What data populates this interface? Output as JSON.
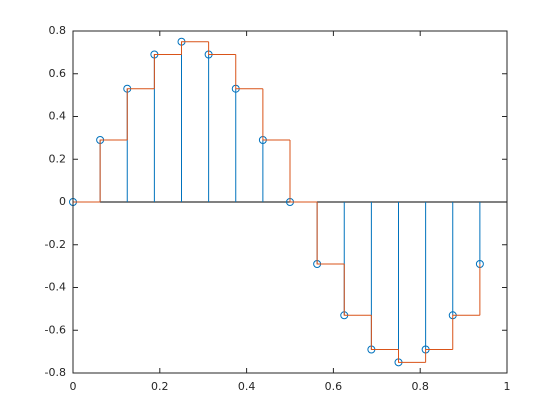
{
  "chart_data": {
    "type": "stem",
    "x": [
      0,
      0.0625,
      0.125,
      0.1875,
      0.25,
      0.3125,
      0.375,
      0.4375,
      0.5,
      0.5625,
      0.625,
      0.6875,
      0.75,
      0.8125,
      0.875,
      0.9375
    ],
    "series": [
      {
        "type": "stem",
        "color": "#0072bd",
        "values": [
          0,
          0.29,
          0.53,
          0.69,
          0.75,
          0.69,
          0.53,
          0.29,
          0,
          -0.29,
          -0.53,
          -0.69,
          -0.75,
          -0.69,
          -0.53,
          -0.29
        ]
      },
      {
        "type": "stairs",
        "color": "#d95319",
        "values": [
          0,
          0.29,
          0.53,
          0.69,
          0.75,
          0.69,
          0.53,
          0.29,
          0,
          -0.29,
          -0.53,
          -0.69,
          -0.75,
          -0.69,
          -0.53,
          -0.29
        ]
      }
    ],
    "xlim": [
      0,
      1
    ],
    "xticks": [
      0,
      0.2,
      0.4,
      0.6,
      0.8,
      1
    ],
    "ylim": [
      -0.8,
      0.8
    ],
    "yticks": [
      -0.8,
      -0.6,
      -0.4,
      -0.2,
      0,
      0.2,
      0.4,
      0.6,
      0.8
    ]
  }
}
